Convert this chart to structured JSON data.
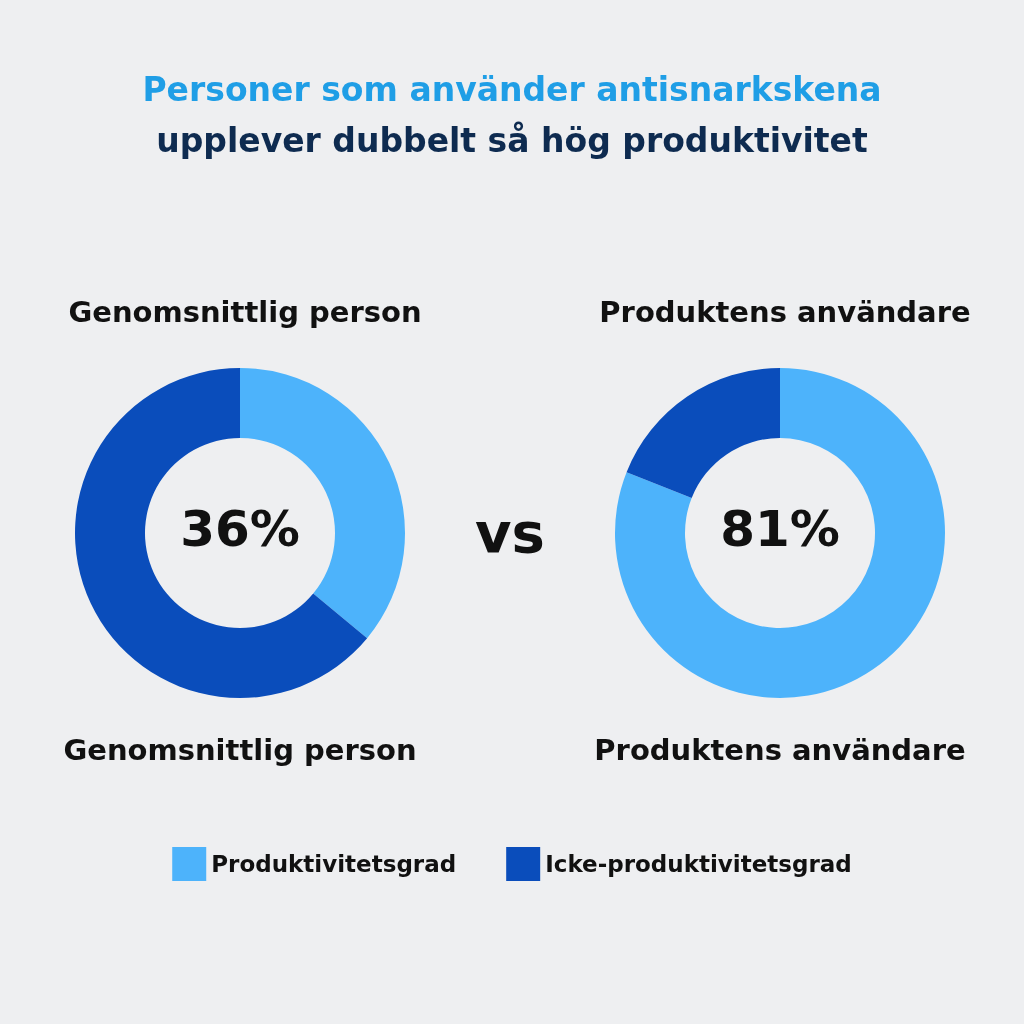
{
  "chart_data": [
    {
      "type": "donut",
      "title": "Genomsnittlig person",
      "subtitle": "Personer som använder antisnarkskena",
      "annotations": [
        "upplever dubbelt så hög produktivitet",
        "Genomsnittlig person",
        "vs",
        "36%"
      ],
      "categories": [
        "Produktivitetsgrad",
        "Icke-produktivitetsgrad"
      ],
      "values": [
        36,
        64
      ],
      "colors": [
        "#4db3fb",
        "#0a4dbb"
      ],
      "legend": "bottom"
    },
    {
      "type": "donut",
      "title": "Produktens användare",
      "annotations": [
        "Produktens användare",
        "81%"
      ],
      "categories": [
        null,
        null
      ],
      "values": [
        81,
        19
      ],
      "colors": [
        "#4db3fb",
        "#0a4dbb"
      ]
    }
  ]
}
